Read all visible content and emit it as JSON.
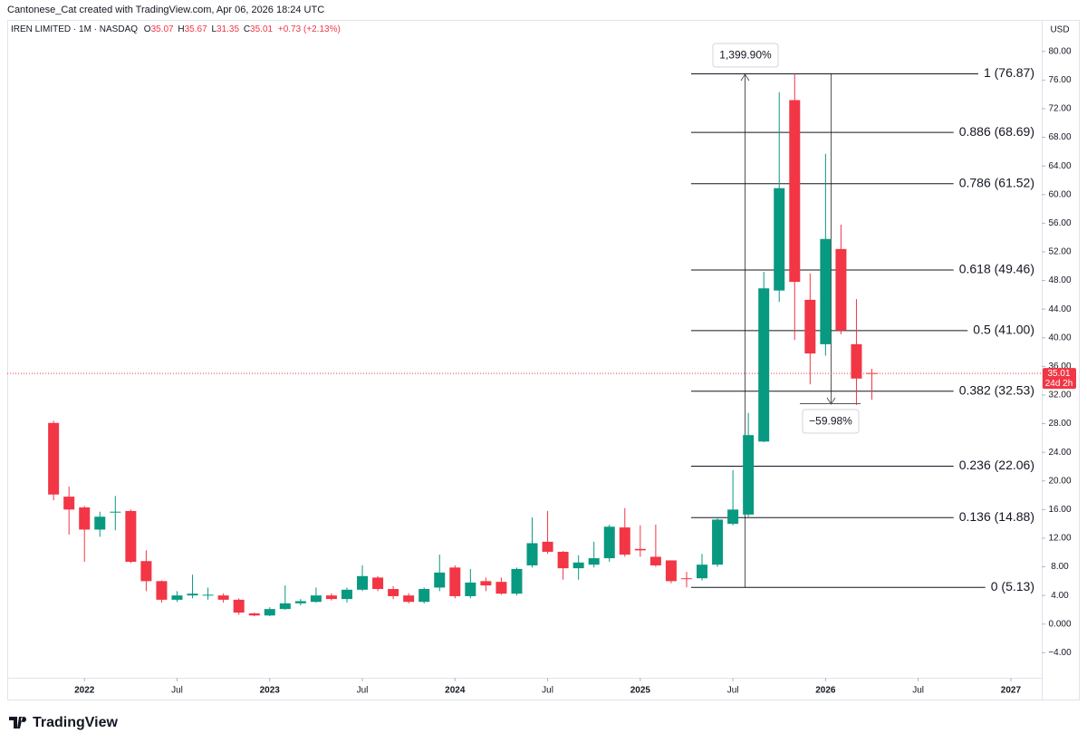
{
  "header": "Cantonese_Cat created with TradingView.com, Apr 06, 2026 18:24 UTC",
  "chart_data": {
    "type": "candlestick",
    "symbol": "IREN LIMITED · 1M · NASDAQ",
    "ohlc_legend": [
      {
        "key": "O",
        "value": 35.07
      },
      {
        "key": "H",
        "value": 35.67
      },
      {
        "key": "L",
        "value": 31.35
      },
      {
        "key": "C",
        "value": 35.01
      }
    ],
    "change": "+0.73 (+2.13%)",
    "currency": "USD",
    "x": [
      "2021-11",
      "2021-12",
      "2022-01",
      "2022-02",
      "2022-03",
      "2022-04",
      "2022-05",
      "2022-06",
      "2022-07",
      "2022-08",
      "2022-09",
      "2022-10",
      "2022-11",
      "2022-12",
      "2023-01",
      "2023-02",
      "2023-03",
      "2023-04",
      "2023-05",
      "2023-06",
      "2023-07",
      "2023-08",
      "2023-09",
      "2023-10",
      "2023-11",
      "2023-12",
      "2024-01",
      "2024-02",
      "2024-03",
      "2024-04",
      "2024-05",
      "2024-06",
      "2024-07",
      "2024-08",
      "2024-09",
      "2024-10",
      "2024-11",
      "2024-12",
      "2025-01",
      "2025-02",
      "2025-03",
      "2025-04",
      "2025-05",
      "2025-06",
      "2025-07",
      "2025-08",
      "2025-09",
      "2025-10",
      "2025-11",
      "2025-12",
      "2026-01",
      "2026-02",
      "2026-03",
      "2026-04"
    ],
    "open": [
      28.1,
      17.8,
      16.3,
      13.2,
      15.6,
      15.8,
      8.8,
      6.0,
      3.4,
      4.0,
      4.0,
      4.0,
      3.4,
      1.5,
      1.2,
      2.1,
      2.9,
      3.1,
      4.0,
      3.5,
      4.8,
      6.5,
      4.9,
      4.0,
      3.1,
      5.1,
      7.9,
      3.9,
      6.0,
      5.9,
      4.25,
      8.2,
      11.5,
      10.1,
      7.8,
      8.3,
      9.2,
      13.5,
      10.5,
      9.4,
      8.9,
      6.4,
      6.4,
      8.3,
      14.0,
      15.3,
      25.5,
      46.6,
      73.2,
      45.3,
      39.1,
      52.4,
      39.1,
      35.07
    ],
    "high": [
      28.4,
      19.2,
      16.5,
      15.7,
      17.9,
      16.0,
      10.3,
      6.1,
      4.6,
      6.9,
      5.1,
      4.3,
      3.6,
      1.6,
      2.35,
      5.4,
      3.5,
      5.1,
      4.3,
      5.1,
      8.2,
      6.7,
      5.3,
      4.3,
      5.1,
      9.7,
      8.2,
      7.7,
      6.5,
      6.5,
      7.9,
      14.9,
      15.8,
      10.2,
      9.6,
      11.5,
      13.9,
      16.2,
      13.8,
      13.9,
      8.9,
      7.3,
      9.8,
      14.9,
      21.5,
      29.5,
      49.2,
      74.3,
      76.87,
      49.0,
      65.7,
      55.8,
      45.4,
      35.67
    ],
    "low": [
      17.3,
      12.5,
      8.7,
      12.2,
      13.1,
      8.5,
      4.6,
      3.0,
      3.1,
      3.6,
      3.4,
      3.0,
      1.3,
      1.1,
      1.1,
      2.0,
      2.6,
      3.0,
      3.3,
      3.0,
      4.6,
      4.6,
      3.5,
      2.9,
      2.9,
      4.6,
      3.6,
      3.6,
      4.6,
      4.1,
      4.0,
      7.9,
      9.8,
      6.2,
      6.2,
      7.9,
      8.7,
      9.4,
      9.4,
      8.0,
      5.7,
      5.13,
      6.1,
      8.0,
      13.8,
      15.0,
      25.4,
      45.0,
      39.7,
      33.5,
      37.5,
      40.5,
      30.6,
      31.35
    ],
    "close": [
      18.1,
      16.0,
      13.2,
      15.0,
      15.7,
      8.7,
      6.0,
      3.4,
      4.0,
      4.25,
      4.1,
      3.4,
      1.6,
      1.2,
      2.1,
      2.9,
      3.2,
      4.0,
      3.5,
      4.8,
      6.7,
      4.9,
      3.9,
      3.1,
      4.9,
      7.2,
      3.9,
      5.8,
      5.4,
      4.25,
      7.7,
      11.3,
      10.1,
      7.8,
      8.6,
      9.2,
      13.6,
      9.7,
      10.3,
      8.2,
      6.0,
      6.3,
      8.3,
      14.6,
      16.0,
      26.4,
      46.9,
      60.9,
      47.8,
      37.8,
      53.8,
      41.0,
      34.3,
      35.01
    ],
    "colors": {
      "up": "#089981",
      "down": "#f23645"
    },
    "xlim": [
      "2021-08",
      "2027-03"
    ],
    "xticks": [
      {
        "value": "2022-01",
        "label": "2022"
      },
      {
        "value": "2022-07",
        "label": "Jul"
      },
      {
        "value": "2023-01",
        "label": "2023"
      },
      {
        "value": "2023-07",
        "label": "Jul"
      },
      {
        "value": "2024-01",
        "label": "2024"
      },
      {
        "value": "2024-07",
        "label": "Jul"
      },
      {
        "value": "2025-01",
        "label": "2025"
      },
      {
        "value": "2025-07",
        "label": "Jul"
      },
      {
        "value": "2026-01",
        "label": "2026"
      },
      {
        "value": "2026-07",
        "label": "Jul"
      },
      {
        "value": "2027-01",
        "label": "2027"
      }
    ],
    "ylim": [
      -7.5,
      84.4
    ],
    "yticks": [
      {
        "value": 80,
        "label": "80.00"
      },
      {
        "value": 76,
        "label": "76.00"
      },
      {
        "value": 72,
        "label": "72.00"
      },
      {
        "value": 68,
        "label": "68.00"
      },
      {
        "value": 64,
        "label": "64.00"
      },
      {
        "value": 60,
        "label": "60.00"
      },
      {
        "value": 56,
        "label": "56.00"
      },
      {
        "value": 52,
        "label": "52.00"
      },
      {
        "value": 48,
        "label": "48.00"
      },
      {
        "value": 44,
        "label": "44.00"
      },
      {
        "value": 40,
        "label": "40.00"
      },
      {
        "value": 36,
        "label": "36.00"
      },
      {
        "value": 32,
        "label": "32.00"
      },
      {
        "value": 28,
        "label": "28.00"
      },
      {
        "value": 24,
        "label": "24.00"
      },
      {
        "value": 20,
        "label": "20.00"
      },
      {
        "value": 16,
        "label": "16.00"
      },
      {
        "value": 12,
        "label": "12.00"
      },
      {
        "value": 8,
        "label": "8.00"
      },
      {
        "value": 4,
        "label": "4.00"
      },
      {
        "value": 0,
        "label": "0.000"
      },
      {
        "value": -4,
        "label": "−4.00"
      }
    ],
    "last_price": 35.01,
    "countdown": "24d 2h",
    "fib_levels": [
      {
        "label": "1 (76.87)",
        "value": 76.87
      },
      {
        "label": "0.886 (68.69)",
        "value": 68.69
      },
      {
        "label": "0.786 (61.52)",
        "value": 61.52
      },
      {
        "label": "0.618 (49.46)",
        "value": 49.46
      },
      {
        "label": "0.5 (41.00)",
        "value": 41.0
      },
      {
        "label": "0.382 (32.53)",
        "value": 32.53
      },
      {
        "label": "0.236 (22.06)",
        "value": 22.06
      },
      {
        "label": "0.136 (14.88)",
        "value": 14.88
      },
      {
        "label": "0 (5.13)",
        "value": 5.13
      }
    ],
    "annotations": [
      "1,399.90%",
      "−59.98%"
    ]
  },
  "footer": "TradingView"
}
